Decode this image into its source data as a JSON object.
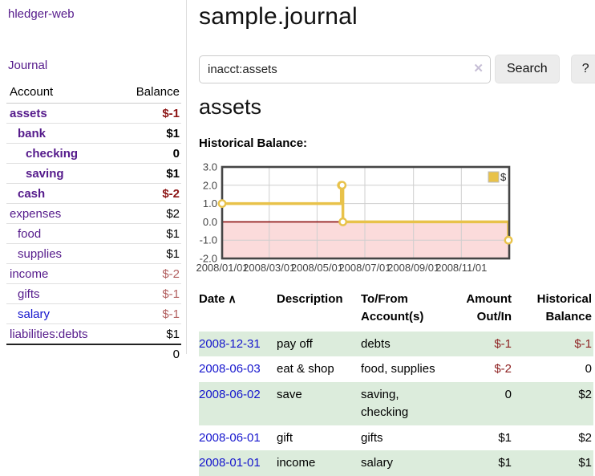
{
  "colors": {
    "link-purple": "#551a8b",
    "link-blue": "#1515cd",
    "neg-strong": "#8c1414",
    "neg-muted": "#b25f5f",
    "neg-table": "#8e2222",
    "stripe-green": "#dcecdc",
    "divider": "#dddddd"
  },
  "sidebar": {
    "brand": "hledger-web",
    "nav_journal": "Journal",
    "table": {
      "headers": [
        "Account",
        "Balance"
      ],
      "accounts": [
        {
          "name": "assets",
          "balance": "$-1",
          "indent": 0,
          "bold": true,
          "name_style": "purple",
          "bal_style": "neg-strong"
        },
        {
          "name": "bank",
          "balance": "$1",
          "indent": 1,
          "bold": true,
          "name_style": "purple",
          "bal_style": "pos"
        },
        {
          "name": "checking",
          "balance": "0",
          "indent": 2,
          "bold": true,
          "name_style": "purple",
          "bal_style": "pos"
        },
        {
          "name": "saving",
          "balance": "$1",
          "indent": 2,
          "bold": true,
          "name_style": "purple",
          "bal_style": "pos"
        },
        {
          "name": "cash",
          "balance": "$-2",
          "indent": 1,
          "bold": true,
          "name_style": "purple",
          "bal_style": "neg-strong"
        },
        {
          "name": "expenses",
          "balance": "$2",
          "indent": 0,
          "bold": false,
          "name_style": "purple",
          "bal_style": "pos"
        },
        {
          "name": "food",
          "balance": "$1",
          "indent": 1,
          "bold": false,
          "name_style": "purple",
          "bal_style": "pos"
        },
        {
          "name": "supplies",
          "balance": "$1",
          "indent": 1,
          "bold": false,
          "name_style": "purple",
          "bal_style": "pos"
        },
        {
          "name": "income",
          "balance": "$-2",
          "indent": 0,
          "bold": false,
          "name_style": "purple",
          "bal_style": "neg"
        },
        {
          "name": "gifts",
          "balance": "$-1",
          "indent": 1,
          "bold": false,
          "name_style": "purple",
          "bal_style": "neg"
        },
        {
          "name": "salary",
          "balance": "$-1",
          "indent": 1,
          "bold": false,
          "name_style": "blue",
          "bal_style": "neg"
        },
        {
          "name": "liabilities:debts",
          "balance": "$1",
          "indent": 0,
          "bold": false,
          "name_style": "purple",
          "bal_style": "pos"
        }
      ],
      "total": "0"
    }
  },
  "main": {
    "title": "sample.journal",
    "search": {
      "value": "inacct:assets",
      "clear_icon": "✕",
      "button": "Search",
      "help_button": "?"
    },
    "account_heading": "assets",
    "chart_label": "Historical Balance:",
    "register": {
      "headers": [
        "Date",
        "Description",
        "To/From Account(s)",
        "Amount Out/In",
        "Historical Balance"
      ],
      "sort_indicator": "∧",
      "rows": [
        {
          "date": "2008-12-31",
          "description": "pay off",
          "accounts": "debts",
          "amount": "$-1",
          "amount_neg": true,
          "balance": "$-1",
          "balance_neg": true,
          "green": true
        },
        {
          "date": "2008-06-03",
          "description": "eat & shop",
          "accounts": "food, supplies",
          "amount": "$-2",
          "amount_neg": true,
          "balance": "0",
          "balance_neg": false,
          "green": false
        },
        {
          "date": "2008-06-02",
          "description": "save",
          "accounts": "saving, checking",
          "amount": "0",
          "amount_neg": false,
          "balance": "$2",
          "balance_neg": false,
          "green": true
        },
        {
          "date": "2008-06-01",
          "description": "gift",
          "accounts": "gifts",
          "amount": "$1",
          "amount_neg": false,
          "balance": "$2",
          "balance_neg": false,
          "green": false
        },
        {
          "date": "2008-01-01",
          "description": "income",
          "accounts": "salary",
          "amount": "$1",
          "amount_neg": false,
          "balance": "$1",
          "balance_neg": false,
          "green": true
        }
      ]
    }
  },
  "chart_data": {
    "type": "line",
    "title": "Historical Balance",
    "step": true,
    "series": [
      {
        "name": "$",
        "color": "#e8c24a",
        "points": [
          [
            "2008-01-01",
            1
          ],
          [
            "2008-06-01",
            2
          ],
          [
            "2008-06-02",
            2
          ],
          [
            "2008-06-03",
            0
          ],
          [
            "2008-12-31",
            -1
          ]
        ]
      }
    ],
    "xlim": [
      "2008-01-01",
      "2009-01-01"
    ],
    "ylim": [
      -2,
      3
    ],
    "x_ticks": [
      "2008/01/01",
      "2008/03/01",
      "2008/05/01",
      "2008/07/01",
      "2008/09/01",
      "2008/11/01"
    ],
    "y_ticks": [
      3.0,
      2.0,
      1.0,
      0.0,
      -1.0,
      -2.0
    ],
    "grid": true,
    "legend_position": "top-right",
    "negative_fill": "#fbdbdb",
    "zero_line_color": "#8b1010"
  }
}
